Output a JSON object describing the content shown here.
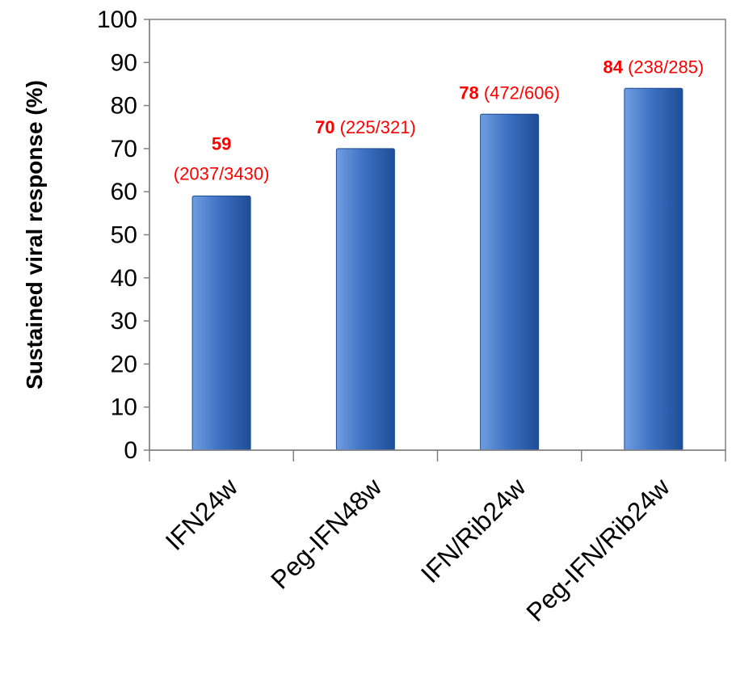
{
  "chart_data": {
    "type": "bar",
    "categories": [
      "IFN24w",
      "Peg-IFN48w",
      "IFN/Rib24w",
      "Peg-IFN/Rib24w"
    ],
    "values": [
      59,
      70,
      78,
      84
    ],
    "data_labels": [
      {
        "value": "59",
        "count": "(2037/3430)"
      },
      {
        "value": "70",
        "count": "(225/321)"
      },
      {
        "value": "78",
        "count": "(472/606)"
      },
      {
        "value": "84",
        "count": "(238/285)"
      }
    ],
    "ylabel": "Sustained viral response (%)",
    "ylim": [
      0,
      100
    ],
    "yticks": [
      0,
      10,
      20,
      30,
      40,
      50,
      60,
      70,
      80,
      90,
      100
    ],
    "grid": false,
    "legend": "none",
    "colors": {
      "bar_light": "#6f9ee0",
      "bar": "#3f72c4",
      "bar_dark": "#1f4d96",
      "label": "#ff0000",
      "axis": "#808080",
      "plot_border": "#7f7f7f"
    }
  }
}
